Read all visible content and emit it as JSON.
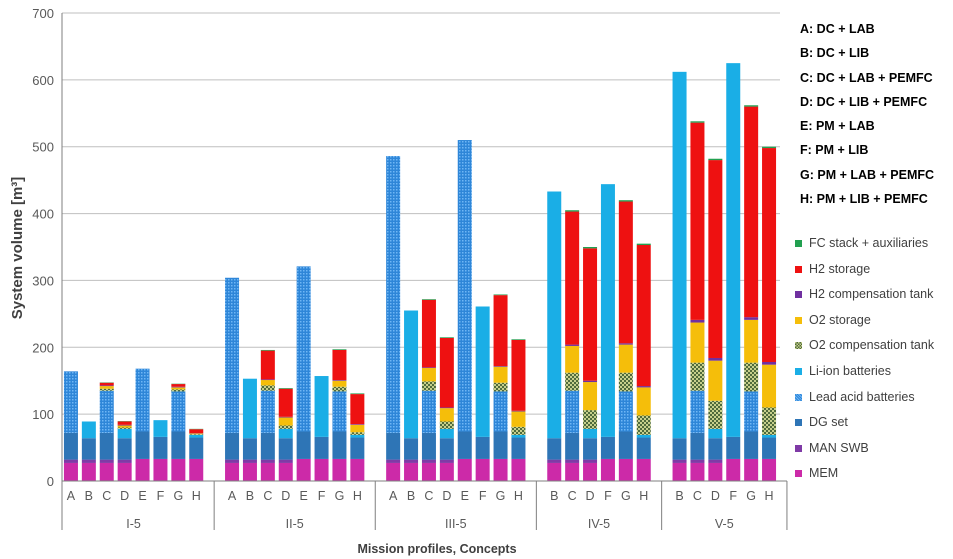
{
  "chart_data": {
    "type": "bar",
    "stacked": true,
    "ylabel": "System volume [m³]",
    "xlabel": "Mission profiles, Concepts",
    "ylim": [
      0,
      700
    ],
    "yticks": [
      0,
      100,
      200,
      300,
      400,
      500,
      600,
      700
    ],
    "grid": "horizontal",
    "legend_position": "right",
    "concept_key": [
      "A: DC + LAB",
      "B: DC + LIB",
      "C: DC + LAB + PEMFC",
      "D: DC + LIB + PEMFC",
      "E: PM + LAB",
      "F: PM + LIB",
      "G: PM + LAB + PEMFC",
      "H: PM + LIB + PEMFC"
    ],
    "components": [
      {
        "name": "MEM",
        "color": "#cc2aa8",
        "pattern": "solid"
      },
      {
        "name": "MAN SWB",
        "color": "#7f3aa6",
        "pattern": "solid"
      },
      {
        "name": "DG set",
        "color": "#2e75b6",
        "pattern": "solid"
      },
      {
        "name": "Lead acid batteries",
        "color": "#2e86d8",
        "pattern": "dots"
      },
      {
        "name": "Li-ion batteries",
        "color": "#1aaee6",
        "pattern": "solid"
      },
      {
        "name": "O2 compensation tank",
        "color": "#8fa06a",
        "pattern": "checker"
      },
      {
        "name": "O2 storage",
        "color": "#f5be0a",
        "pattern": "solid"
      },
      {
        "name": "H2 compensation tank",
        "color": "#7030a0",
        "pattern": "solid"
      },
      {
        "name": "H2 storage",
        "color": "#ee1111",
        "pattern": "solid"
      },
      {
        "name": "FC stack + auxiliaries",
        "color": "#22a050",
        "pattern": "solid"
      }
    ],
    "groups": [
      {
        "name": "I-5",
        "bars": [
          {
            "label": "A",
            "values": [
              27,
              5,
              40,
              92,
              0,
              0,
              0,
              0,
              0,
              0
            ]
          },
          {
            "label": "B",
            "values": [
              27,
              5,
              32,
              0,
              25,
              0,
              0,
              0,
              0,
              0
            ]
          },
          {
            "label": "C",
            "values": [
              27,
              5,
              40,
              63,
              0,
              3,
              4,
              1,
              4,
              0.5
            ]
          },
          {
            "label": "D",
            "values": [
              27,
              5,
              32,
              0,
              14,
              2,
              3,
              1,
              5,
              0.5
            ]
          },
          {
            "label": "E",
            "values": [
              33,
              0,
              41,
              94,
              0,
              0,
              0,
              0,
              0,
              0
            ]
          },
          {
            "label": "F",
            "values": [
              33,
              0,
              33,
              0,
              25,
              0,
              0,
              0,
              0,
              0
            ]
          },
          {
            "label": "G",
            "values": [
              33,
              0,
              41,
              60,
              0,
              3,
              3,
              1,
              4,
              0.5
            ]
          },
          {
            "label": "H",
            "values": [
              33,
              0,
              32,
              0,
              4,
              1,
              1,
              0.5,
              6,
              0.5
            ]
          }
        ]
      },
      {
        "name": "II-5",
        "bars": [
          {
            "label": "A",
            "values": [
              27,
              5,
              40,
              232,
              0,
              0,
              0,
              0,
              0,
              0
            ]
          },
          {
            "label": "B",
            "values": [
              27,
              5,
              32,
              0,
              89,
              0,
              0,
              0,
              0,
              0
            ]
          },
          {
            "label": "C",
            "values": [
              27,
              5,
              40,
              63,
              0,
              8,
              8,
              1,
              43,
              1
            ]
          },
          {
            "label": "D",
            "values": [
              27,
              5,
              32,
              0,
              14,
              5,
              12,
              1,
              42,
              1
            ]
          },
          {
            "label": "E",
            "values": [
              33,
              0,
              41,
              247,
              0,
              0,
              0,
              0,
              0,
              0
            ]
          },
          {
            "label": "F",
            "values": [
              33,
              0,
              33,
              0,
              91,
              0,
              0,
              0,
              0,
              0
            ]
          },
          {
            "label": "G",
            "values": [
              33,
              0,
              41,
              60,
              0,
              7,
              9,
              1,
              45,
              1
            ]
          },
          {
            "label": "H",
            "values": [
              33,
              0,
              32,
              0,
              4,
              4,
              11,
              1,
              45,
              1
            ]
          }
        ]
      },
      {
        "name": "III-5",
        "bars": [
          {
            "label": "A",
            "values": [
              27,
              5,
              40,
              414,
              0,
              0,
              0,
              0,
              0,
              0
            ]
          },
          {
            "label": "B",
            "values": [
              27,
              5,
              32,
              0,
              191,
              0,
              0,
              0,
              0,
              0
            ]
          },
          {
            "label": "C",
            "values": [
              27,
              5,
              40,
              63,
              0,
              14,
              20,
              1,
              101,
              1
            ]
          },
          {
            "label": "D",
            "values": [
              27,
              5,
              32,
              0,
              14,
              11,
              20,
              1,
              104,
              1
            ]
          },
          {
            "label": "E",
            "values": [
              33,
              0,
              41,
              436,
              0,
              0,
              0,
              0,
              0,
              0
            ]
          },
          {
            "label": "F",
            "values": [
              33,
              0,
              33,
              0,
              195,
              0,
              0,
              0,
              0,
              0
            ]
          },
          {
            "label": "G",
            "values": [
              33,
              0,
              41,
              60,
              0,
              13,
              24,
              1,
              106,
              1
            ]
          },
          {
            "label": "H",
            "values": [
              33,
              0,
              32,
              0,
              4,
              12,
              23,
              1,
              106,
              1
            ]
          }
        ]
      },
      {
        "name": "IV-5",
        "bars": [
          {
            "label": "B",
            "values": [
              27,
              5,
              32,
              0,
              369,
              0,
              0,
              0,
              0,
              0
            ]
          },
          {
            "label": "C",
            "values": [
              27,
              5,
              40,
              63,
              0,
              27,
              40,
              2,
              199,
              2
            ]
          },
          {
            "label": "D",
            "values": [
              27,
              5,
              32,
              0,
              14,
              28,
              42,
              2,
              198,
              2
            ]
          },
          {
            "label": "F",
            "values": [
              33,
              0,
              33,
              0,
              378,
              0,
              0,
              0,
              0,
              0
            ]
          },
          {
            "label": "G",
            "values": [
              33,
              0,
              41,
              60,
              0,
              28,
              42,
              2,
              212,
              2
            ]
          },
          {
            "label": "H",
            "values": [
              33,
              0,
              32,
              0,
              4,
              29,
              42,
              2,
              211,
              2
            ]
          }
        ]
      },
      {
        "name": "V-5",
        "bars": [
          {
            "label": "B",
            "values": [
              27,
              5,
              32,
              0,
              548,
              0,
              0,
              0,
              0,
              0
            ]
          },
          {
            "label": "C",
            "values": [
              27,
              5,
              40,
              63,
              0,
              42,
              60,
              4,
              295,
              2
            ]
          },
          {
            "label": "D",
            "values": [
              27,
              5,
              32,
              0,
              14,
              42,
              60,
              4,
              296,
              2
            ]
          },
          {
            "label": "F",
            "values": [
              33,
              0,
              33,
              0,
              559,
              0,
              0,
              0,
              0,
              0
            ]
          },
          {
            "label": "G",
            "values": [
              33,
              0,
              41,
              60,
              0,
              43,
              64,
              4,
              315,
              2
            ]
          },
          {
            "label": "H",
            "values": [
              33,
              0,
              32,
              0,
              4,
              41,
              64,
              4,
              320,
              2
            ]
          }
        ]
      }
    ]
  }
}
